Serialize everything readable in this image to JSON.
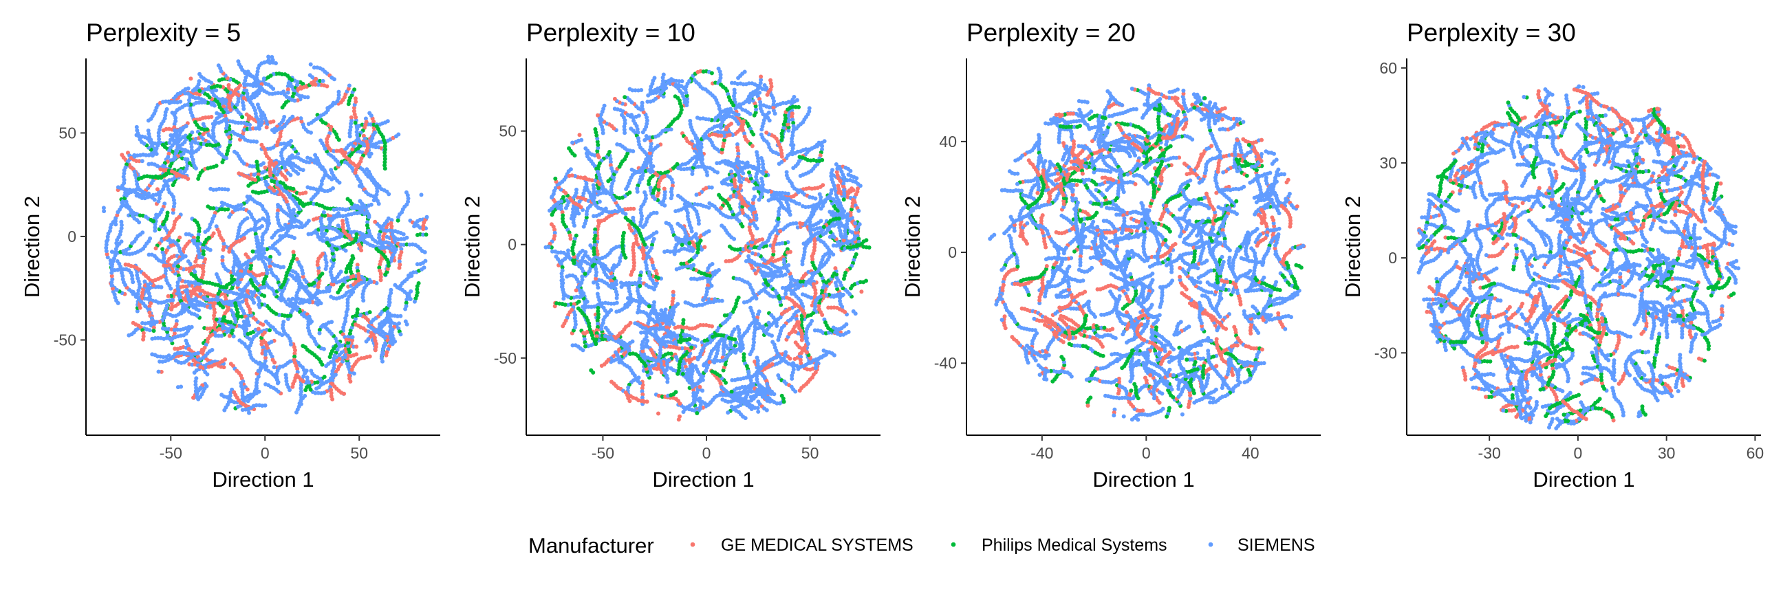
{
  "legend": {
    "title": "Manufacturer",
    "entries": [
      {
        "label": "GE MEDICAL SYSTEMS",
        "color": "#F8766D"
      },
      {
        "label": "Philips Medical Systems",
        "color": "#00BA38"
      },
      {
        "label": "SIEMENS",
        "color": "#619CFF"
      }
    ]
  },
  "chart_data": [
    {
      "type": "scatter",
      "title": "Perplexity = 5",
      "xlabel": "Direction 1",
      "ylabel": "Direction 2",
      "xlim": [
        -95,
        93
      ],
      "ylim": [
        -96,
        86
      ],
      "xticks": [
        -50,
        0,
        50
      ],
      "yticks": [
        -50,
        0,
        50
      ],
      "grid": false,
      "radius": 86,
      "series": [
        {
          "name": "GE MEDICAL SYSTEMS",
          "color": "#F8766D",
          "share": 0.2
        },
        {
          "name": "Philips Medical Systems",
          "color": "#00BA38",
          "share": 0.14
        },
        {
          "name": "SIEMENS",
          "color": "#619CFF",
          "share": 0.66
        }
      ]
    },
    {
      "type": "scatter",
      "title": "Perplexity = 10",
      "xlabel": "Direction 1",
      "ylabel": "Direction 2",
      "xlim": [
        -87,
        84
      ],
      "ylim": [
        -84,
        82
      ],
      "xticks": [
        -50,
        0,
        50
      ],
      "yticks": [
        -50,
        0,
        50
      ],
      "grid": false,
      "radius": 78,
      "series": [
        {
          "name": "GE MEDICAL SYSTEMS",
          "color": "#F8766D",
          "share": 0.2
        },
        {
          "name": "Philips Medical Systems",
          "color": "#00BA38",
          "share": 0.14
        },
        {
          "name": "SIEMENS",
          "color": "#619CFF",
          "share": 0.66
        }
      ]
    },
    {
      "type": "scatter",
      "title": "Perplexity = 20",
      "xlabel": "Direction 1",
      "ylabel": "Direction 2",
      "xlim": [
        -69,
        67
      ],
      "ylim": [
        -66,
        70
      ],
      "xticks": [
        -40,
        0,
        40
      ],
      "yticks": [
        -40,
        0,
        40
      ],
      "grid": false,
      "radius": 60,
      "series": [
        {
          "name": "GE MEDICAL SYSTEMS",
          "color": "#F8766D",
          "share": 0.2
        },
        {
          "name": "Philips Medical Systems",
          "color": "#00BA38",
          "share": 0.14
        },
        {
          "name": "SIEMENS",
          "color": "#619CFF",
          "share": 0.66
        }
      ]
    },
    {
      "type": "scatter",
      "title": "Perplexity = 30",
      "xlabel": "Direction 1",
      "ylabel": "Direction 2",
      "xlim": [
        -58,
        62
      ],
      "ylim": [
        -56,
        63
      ],
      "xticks": [
        -30,
        0,
        30,
        60
      ],
      "yticks": [
        -30,
        0,
        30,
        60
      ],
      "grid": false,
      "radius": 54,
      "series": [
        {
          "name": "GE MEDICAL SYSTEMS",
          "color": "#F8766D",
          "share": 0.2
        },
        {
          "name": "Philips Medical Systems",
          "color": "#00BA38",
          "share": 0.14
        },
        {
          "name": "SIEMENS",
          "color": "#619CFF",
          "share": 0.66
        }
      ]
    }
  ]
}
